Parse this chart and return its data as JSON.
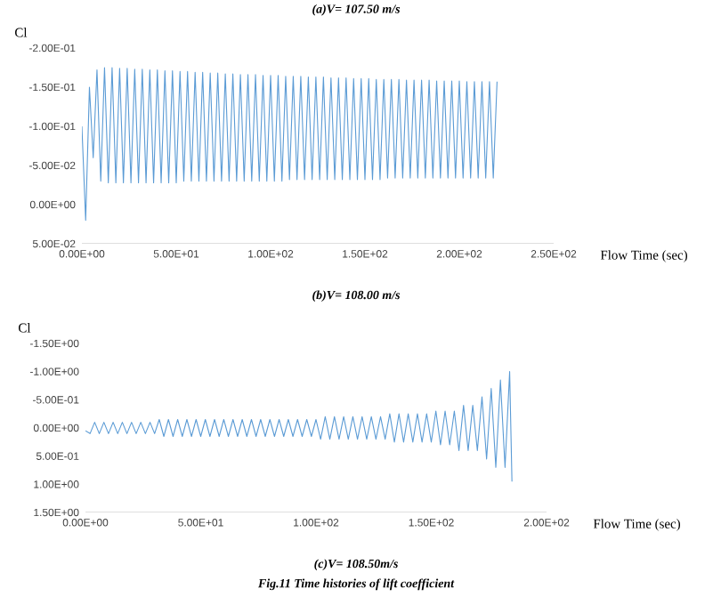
{
  "chart_data": [
    {
      "type": "line",
      "ylabel": "Cl",
      "xlabel": "Flow Time (sec)",
      "annotations": [
        "(a)V= 107.50 m/s",
        "(b)V= 108.00 m/s"
      ],
      "xlim": [
        0,
        250
      ],
      "ylim": [
        0.05,
        -0.2
      ],
      "xticks": [
        {
          "value": 0,
          "label": "0.00E+00"
        },
        {
          "value": 50,
          "label": "5.00E+01"
        },
        {
          "value": 100,
          "label": "1.00E+02"
        },
        {
          "value": 150,
          "label": "1.50E+02"
        },
        {
          "value": 200,
          "label": "2.00E+02"
        },
        {
          "value": 250,
          "label": "2.50E+02"
        }
      ],
      "yticks": [
        {
          "value": -0.2,
          "label": "-2.00E-01"
        },
        {
          "value": -0.15,
          "label": "-1.50E-01"
        },
        {
          "value": -0.1,
          "label": "-1.00E-01"
        },
        {
          "value": -0.05,
          "label": "-5.00E-02"
        },
        {
          "value": 0,
          "label": "0.00E+00"
        },
        {
          "value": 0.05,
          "label": "5.00E-02"
        }
      ],
      "grid": false,
      "marker": "none",
      "line_style": "solid",
      "series": [
        {
          "color": "#5b9bd5",
          "x": [
            0,
            2,
            4,
            6,
            8,
            10,
            12,
            14,
            16,
            18,
            20,
            22,
            24,
            26,
            28,
            30,
            32,
            34,
            36,
            38,
            40,
            42,
            44,
            46,
            48,
            50,
            52,
            54,
            56,
            58,
            60,
            62,
            64,
            66,
            68,
            70,
            72,
            74,
            76,
            78,
            80,
            82,
            84,
            86,
            88,
            90,
            92,
            94,
            96,
            98,
            100,
            102,
            104,
            106,
            108,
            110,
            112,
            114,
            116,
            118,
            120,
            122,
            124,
            126,
            128,
            130,
            132,
            134,
            136,
            138,
            140,
            142,
            144,
            146,
            148,
            150,
            152,
            154,
            156,
            158,
            160,
            162,
            164,
            166,
            168,
            170,
            172,
            174,
            176,
            178,
            180,
            182,
            184,
            186,
            188,
            190,
            192,
            194,
            196,
            198,
            200,
            202,
            204,
            206,
            208,
            210,
            212,
            214,
            216,
            218,
            220
          ],
          "values": [
            -0.1,
            0.02,
            -0.15,
            -0.06,
            -0.172,
            -0.03,
            -0.175,
            -0.028,
            -0.175,
            -0.028,
            -0.174,
            -0.028,
            -0.174,
            -0.028,
            -0.173,
            -0.028,
            -0.173,
            -0.028,
            -0.172,
            -0.028,
            -0.172,
            -0.028,
            -0.171,
            -0.028,
            -0.171,
            -0.028,
            -0.17,
            -0.03,
            -0.17,
            -0.03,
            -0.169,
            -0.03,
            -0.169,
            -0.03,
            -0.168,
            -0.03,
            -0.168,
            -0.03,
            -0.167,
            -0.03,
            -0.167,
            -0.03,
            -0.166,
            -0.03,
            -0.166,
            -0.03,
            -0.166,
            -0.03,
            -0.165,
            -0.03,
            -0.165,
            -0.03,
            -0.165,
            -0.03,
            -0.164,
            -0.032,
            -0.164,
            -0.032,
            -0.164,
            -0.032,
            -0.163,
            -0.032,
            -0.163,
            -0.032,
            -0.163,
            -0.032,
            -0.162,
            -0.032,
            -0.162,
            -0.032,
            -0.162,
            -0.032,
            -0.161,
            -0.032,
            -0.161,
            -0.032,
            -0.161,
            -0.032,
            -0.16,
            -0.032,
            -0.16,
            -0.034,
            -0.16,
            -0.034,
            -0.16,
            -0.034,
            -0.159,
            -0.034,
            -0.159,
            -0.034,
            -0.159,
            -0.034,
            -0.159,
            -0.034,
            -0.158,
            -0.034,
            -0.158,
            -0.034,
            -0.158,
            -0.034,
            -0.158,
            -0.034,
            -0.157,
            -0.034,
            -0.157,
            -0.034,
            -0.157,
            -0.034,
            -0.157,
            -0.034,
            -0.157
          ]
        }
      ]
    },
    {
      "type": "line",
      "ylabel": "Cl",
      "xlabel": "Flow Time (sec)",
      "annotations": [
        "(c)V= 108.50m/s",
        "Fig.11 Time histories of lift coefficient"
      ],
      "xlim": [
        0,
        200
      ],
      "ylim": [
        1.5,
        -1.5
      ],
      "xticks": [
        {
          "value": 0,
          "label": "0.00E+00"
        },
        {
          "value": 50,
          "label": "5.00E+01"
        },
        {
          "value": 100,
          "label": "1.00E+02"
        },
        {
          "value": 150,
          "label": "1.50E+02"
        },
        {
          "value": 200,
          "label": "2.00E+02"
        }
      ],
      "yticks": [
        {
          "value": -1.5,
          "label": "-1.50E+00"
        },
        {
          "value": -1,
          "label": "-1.00E+00"
        },
        {
          "value": -0.5,
          "label": "-5.00E-01"
        },
        {
          "value": 0,
          "label": "0.00E+00"
        },
        {
          "value": 0.5,
          "label": "5.00E-01"
        },
        {
          "value": 1,
          "label": "1.00E+00"
        },
        {
          "value": 1.5,
          "label": "1.50E+00"
        }
      ],
      "grid": false,
      "marker": "none",
      "line_style": "solid",
      "series": [
        {
          "color": "#5b9bd5",
          "x": [
            0,
            2,
            4,
            6,
            8,
            10,
            12,
            14,
            16,
            18,
            20,
            22,
            24,
            26,
            28,
            30,
            32,
            34,
            36,
            38,
            40,
            42,
            44,
            46,
            48,
            50,
            52,
            54,
            56,
            58,
            60,
            62,
            64,
            66,
            68,
            70,
            72,
            74,
            76,
            78,
            80,
            82,
            84,
            86,
            88,
            90,
            92,
            94,
            96,
            98,
            100,
            102,
            104,
            106,
            108,
            110,
            112,
            114,
            116,
            118,
            120,
            122,
            124,
            126,
            128,
            130,
            132,
            134,
            136,
            138,
            140,
            142,
            144,
            146,
            148,
            150,
            152,
            154,
            156,
            158,
            160,
            162,
            164,
            166,
            168,
            170,
            172,
            174,
            176,
            178,
            180,
            182,
            184,
            185
          ],
          "values": [
            0.05,
            0.1,
            -0.1,
            0.1,
            -0.1,
            0.1,
            -0.1,
            0.1,
            -0.1,
            0.1,
            -0.1,
            0.1,
            -0.1,
            0.1,
            -0.1,
            0.1,
            -0.15,
            0.15,
            -0.15,
            0.15,
            -0.15,
            0.15,
            -0.15,
            0.15,
            -0.15,
            0.15,
            -0.15,
            0.15,
            -0.15,
            0.15,
            -0.15,
            0.15,
            -0.15,
            0.15,
            -0.15,
            0.15,
            -0.15,
            0.15,
            -0.15,
            0.15,
            -0.15,
            0.15,
            -0.15,
            0.15,
            -0.15,
            0.15,
            -0.15,
            0.15,
            -0.15,
            0.15,
            -0.15,
            0.2,
            -0.2,
            0.2,
            -0.2,
            0.2,
            -0.2,
            0.2,
            -0.2,
            0.2,
            -0.2,
            0.2,
            -0.2,
            0.2,
            -0.2,
            0.2,
            -0.25,
            0.25,
            -0.25,
            0.25,
            -0.25,
            0.25,
            -0.25,
            0.25,
            -0.25,
            0.25,
            -0.3,
            0.3,
            -0.3,
            0.3,
            -0.3,
            0.4,
            -0.4,
            0.4,
            -0.4,
            0.4,
            -0.55,
            0.55,
            -0.7,
            0.7,
            -0.85,
            0.7,
            -1.0,
            0.95
          ]
        }
      ]
    }
  ]
}
